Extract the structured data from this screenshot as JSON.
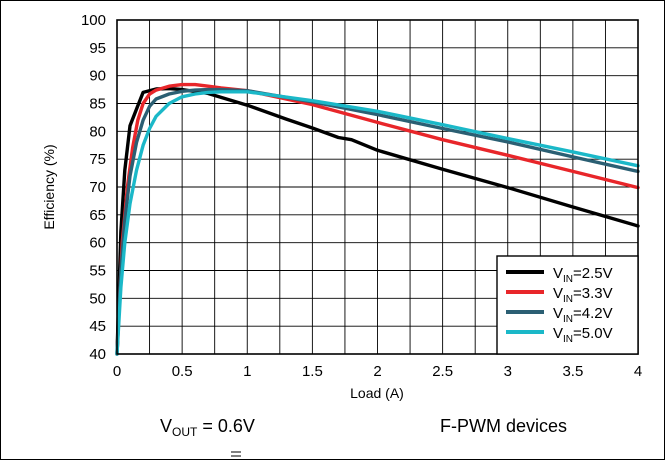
{
  "chart_data": {
    "type": "line",
    "xlabel": "Load (A)",
    "ylabel": "Efficiency (%)",
    "xlim": [
      0,
      4
    ],
    "ylim": [
      40,
      100
    ],
    "xticks": [
      "0",
      "0.5",
      "1",
      "1.5",
      "2",
      "2.5",
      "3",
      "3.5",
      "4"
    ],
    "yticks": [
      "40",
      "45",
      "50",
      "55",
      "60",
      "65",
      "70",
      "75",
      "80",
      "85",
      "90",
      "95",
      "100"
    ],
    "grid": true,
    "legend_position": "bottom-right",
    "series": [
      {
        "name": "2.5V",
        "legend_prefix": "V",
        "legend_sub": "IN",
        "color": "#000000",
        "x": [
          0.0,
          0.03,
          0.06,
          0.1,
          0.15,
          0.2,
          0.3,
          0.4,
          0.5,
          0.7,
          1.0,
          1.3,
          1.5,
          1.7,
          1.8,
          2.0,
          2.5,
          3.0,
          3.5,
          4.0
        ],
        "y": [
          40,
          62,
          73,
          81,
          84,
          87,
          87.6,
          87.7,
          87.5,
          86.8,
          84.7,
          82.2,
          80.6,
          78.9,
          78.5,
          76.6,
          73.2,
          69.9,
          66.4,
          63.0
        ]
      },
      {
        "name": "3.3V",
        "legend_prefix": "V",
        "legend_sub": "IN",
        "color": "#e8262a",
        "x": [
          0.0,
          0.04,
          0.08,
          0.12,
          0.16,
          0.2,
          0.25,
          0.3,
          0.4,
          0.5,
          0.6,
          0.7,
          0.8,
          1.0,
          1.5,
          2.0,
          2.5,
          3.0,
          3.5,
          4.0
        ],
        "y": [
          40,
          60,
          70,
          77,
          82,
          85,
          86.7,
          87.4,
          88.1,
          88.4,
          88.4,
          88.1,
          87.8,
          87.3,
          84.8,
          81.6,
          78.5,
          75.7,
          72.8,
          69.9
        ]
      },
      {
        "name": "4.2V",
        "legend_prefix": "V",
        "legend_sub": "IN",
        "color": "#2b5f73",
        "x": [
          0.0,
          0.03,
          0.06,
          0.1,
          0.15,
          0.2,
          0.25,
          0.3,
          0.4,
          0.5,
          0.6,
          0.7,
          0.8,
          1.0,
          1.5,
          2.0,
          2.5,
          3.0,
          3.5,
          4.0
        ],
        "y": [
          40,
          55,
          64,
          72,
          78,
          82,
          84.5,
          85.8,
          86.7,
          87.2,
          87.4,
          87.5,
          87.5,
          87.3,
          85.3,
          83.0,
          80.5,
          78.1,
          75.4,
          72.8
        ]
      },
      {
        "name": "5.0V",
        "legend_prefix": "V",
        "legend_sub": "IN",
        "color": "#1bb8c8",
        "x": [
          0.0,
          0.03,
          0.06,
          0.1,
          0.15,
          0.2,
          0.25,
          0.3,
          0.4,
          0.5,
          0.6,
          0.7,
          0.8,
          1.0,
          1.5,
          2.0,
          2.5,
          3.0,
          3.5,
          4.0
        ],
        "y": [
          40,
          52,
          60,
          67,
          73,
          77.5,
          80.5,
          82.7,
          85.0,
          86.2,
          86.7,
          87.0,
          87.1,
          87.1,
          85.5,
          83.6,
          81.2,
          78.7,
          76.3,
          73.8
        ]
      }
    ]
  },
  "annotations": {
    "vout_prefix": "V",
    "vout_sub": "OUT",
    "vout_value": " = 0.6V",
    "device_note": "F-PWM devices"
  }
}
